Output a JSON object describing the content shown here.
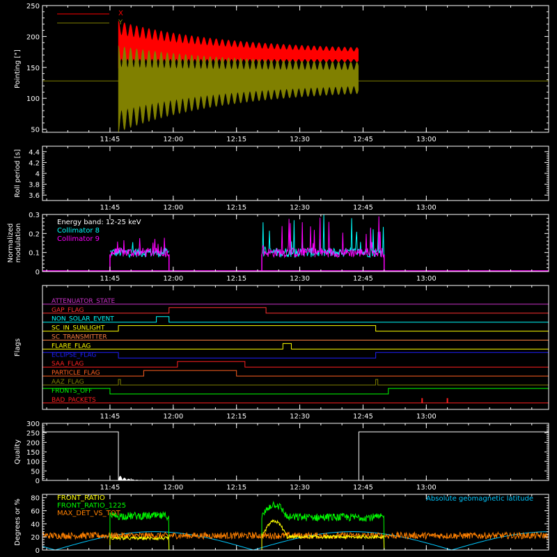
{
  "colors": {
    "x_series": "#ff0000",
    "y_series": "#808000",
    "coll8": "#00ffff",
    "coll9": "#ff00ff",
    "white": "#ffffff",
    "green": "#00ff00",
    "orange": "#ff8000",
    "yellow": "#ffff00",
    "cyan": "#00c8ff"
  },
  "chart_data": [
    {
      "id": "pointing",
      "type": "area",
      "ylabel": "Pointing [\"]",
      "yticks": [
        50,
        100,
        150,
        200,
        250
      ],
      "ylim": [
        45,
        250
      ],
      "series": [
        {
          "name": "X",
          "color": "#ff0000",
          "start": "11:47",
          "end": "12:44",
          "center_start": 180,
          "center_end": 167,
          "amp_start": 45,
          "amp_end": 10
        },
        {
          "name": "Y",
          "color": "#808000",
          "start": "11:47",
          "end": "12:44",
          "center_start": 115,
          "center_end": 135,
          "amp_start": 70,
          "amp_end": 20
        }
      ],
      "reference_line": 128
    },
    {
      "id": "roll",
      "type": "line",
      "ylabel": "Roll period [s]",
      "yticks": [
        3.6,
        3.8,
        4.0,
        4.2,
        4.4
      ],
      "ylim": [
        3.5,
        4.5
      ]
    },
    {
      "id": "modulation",
      "type": "line",
      "ylabel": [
        "Normalized",
        "modulation"
      ],
      "yticks": [
        0.0,
        0.1,
        0.2,
        0.3
      ],
      "ylim": [
        0,
        0.3
      ],
      "annotations": [
        "Energy band: 12-25 keV",
        "Collimator 8",
        "Collimator 9"
      ],
      "segments": [
        [
          "11:45",
          "11:59"
        ],
        [
          "12:21",
          "12:50"
        ]
      ]
    },
    {
      "id": "flags",
      "type": "line",
      "ylabel": "Flags",
      "flags": [
        {
          "name": "ATTENUATOR_STATE",
          "color": "#cc33cc",
          "high": []
        },
        {
          "name": "GAP_FLAG",
          "color": "#ff3030",
          "high": [
            [
              "11:59",
              "12:22"
            ]
          ]
        },
        {
          "name": "NON_SOLAR_EVENT",
          "color": "#00ffff",
          "high": [
            [
              "11:56",
              "11:59"
            ]
          ]
        },
        {
          "name": "SC_IN_SUNLIGHT",
          "color": "#ffff00",
          "high": [
            [
              "11:47",
              "12:48"
            ]
          ]
        },
        {
          "name": "SC_TRANSMITTER",
          "color": "#ff8040",
          "high": []
        },
        {
          "name": "FLARE_FLAG",
          "color": "#ffff00",
          "high": [
            [
              "12:26",
              "12:28"
            ]
          ]
        },
        {
          "name": "ECLIPSE_FLAG",
          "color": "#2020ff",
          "high": [
            [
              "11:29",
              "11:47"
            ],
            [
              "12:48",
              "13:29"
            ]
          ]
        },
        {
          "name": "SAA_FLAG",
          "color": "#ff2020",
          "high": [
            [
              "12:01",
              "12:17"
            ]
          ]
        },
        {
          "name": "PARTICLE_FLAG",
          "color": "#ff6020",
          "high": [
            [
              "11:53",
              "12:15"
            ]
          ]
        },
        {
          "name": "AAZ_FLAG",
          "color": "#808000",
          "high": [
            [
              "11:47",
              "11:47.5"
            ],
            [
              "12:48",
              "12:48.5"
            ]
          ]
        },
        {
          "name": "FRONTS_OFF",
          "color": "#00ff00",
          "high": [
            [
              "11:29",
              "11:45"
            ],
            [
              "12:51",
              "13:29"
            ]
          ]
        },
        {
          "name": "BAD_PACKETS",
          "color": "#ff2020",
          "spikes": [
            "12:59",
            "13:05"
          ]
        }
      ]
    },
    {
      "id": "quality",
      "type": "line",
      "ylabel": "Quality",
      "yticks": [
        0,
        50,
        100,
        150,
        200,
        250,
        300
      ],
      "ylim": [
        0,
        300
      ],
      "levels": [
        {
          "range": [
            "11:29",
            "11:47"
          ],
          "value": 255
        },
        {
          "range": [
            "12:44",
            "13:29"
          ],
          "value": 255
        }
      ]
    },
    {
      "id": "ratios",
      "type": "line",
      "ylabel": "Degrees or %",
      "yticks": [
        0,
        20,
        40,
        60,
        80
      ],
      "ylim": [
        0,
        85
      ],
      "series": [
        {
          "name": "FRONT_RATIO",
          "color": "#ffff00"
        },
        {
          "name": "FRONT_RATIO_1225",
          "color": "#00ff00"
        },
        {
          "name": "MAX_DET_VS_TOT",
          "color": "#ff8000"
        }
      ],
      "annotation": "Absolute geomagnetic latitude"
    }
  ],
  "x_axis": {
    "range": [
      "11:29",
      "13:29"
    ],
    "ticks": [
      "11:45",
      "12:00",
      "12:15",
      "12:30",
      "12:45",
      "13:00"
    ]
  }
}
